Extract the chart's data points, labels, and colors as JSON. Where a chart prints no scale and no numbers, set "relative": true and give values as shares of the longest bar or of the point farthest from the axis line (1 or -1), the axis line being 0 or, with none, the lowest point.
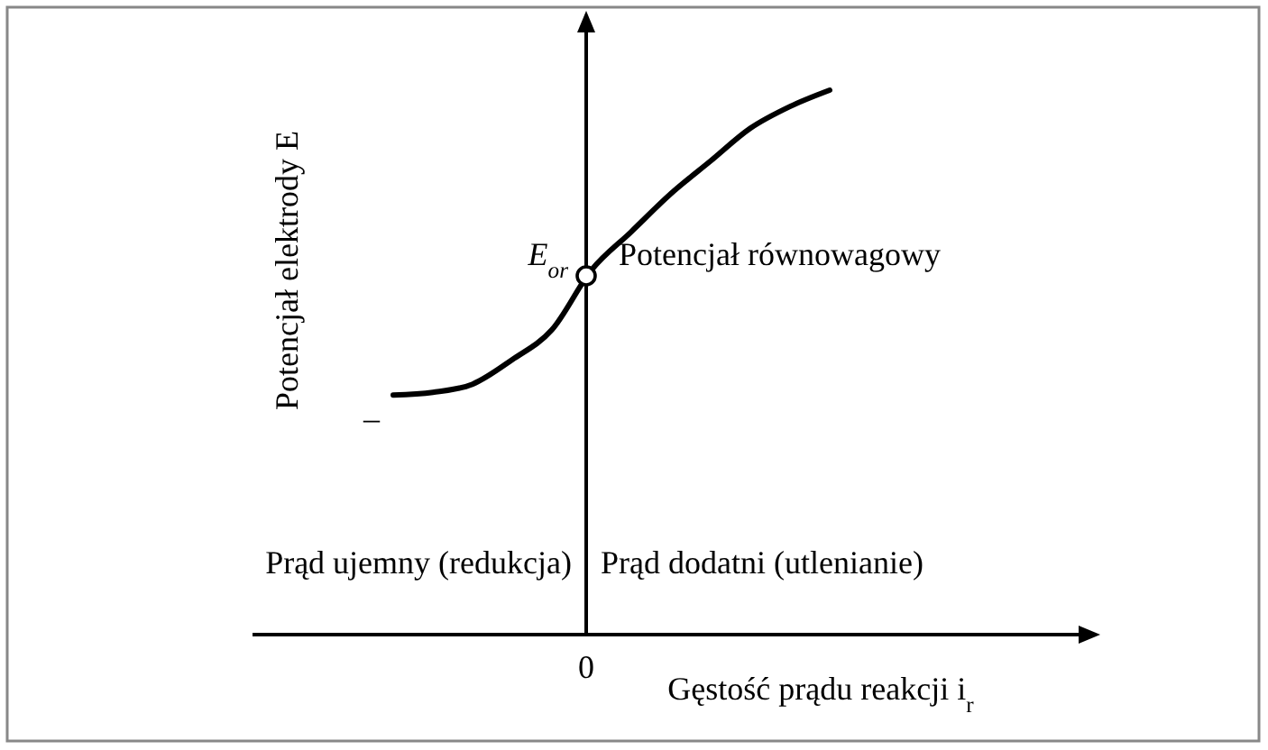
{
  "chart_data": {
    "type": "line",
    "relative": true,
    "xlabel": "Gęstość prądu reakcji i$_{r}$",
    "ylabel": "Potencjał elektrody E",
    "line_style": "solid",
    "categories": [
      null,
      null,
      null,
      null,
      null,
      null,
      null,
      null,
      null,
      null,
      null,
      null
    ],
    "series": [
      {
        "color": "#000000",
        "values": [
          0.44,
          0.445,
          0.46,
          0.505,
          0.56,
          0.67,
          0.74,
          0.81,
          0.87,
          0.93,
          0.97,
          1
        ]
      }
    ],
    "annotations": [
      "E$_{or}$",
      "Potencjał równowagowy",
      "Prąd ujemny (redukcja)",
      "Prąd dodatni (utlenianie)",
      "–",
      "0"
    ]
  }
}
